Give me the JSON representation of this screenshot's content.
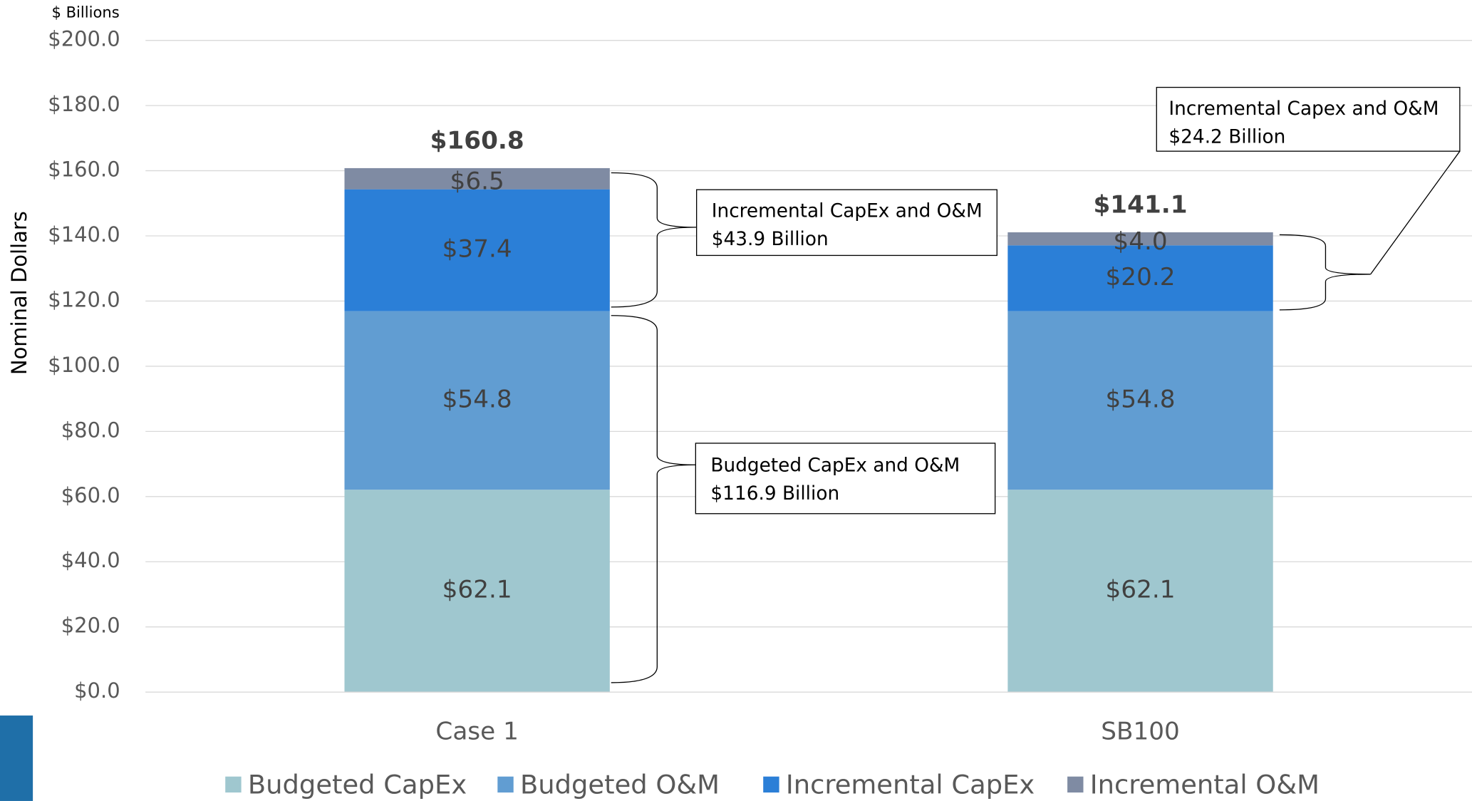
{
  "chart_data": {
    "type": "stacked_bar",
    "unit_label": "$ Billions",
    "y_axis_label": "Nominal Dollars",
    "categories": [
      "Case 1",
      "SB100"
    ],
    "series": [
      {
        "name": "Budgeted CapEx",
        "color": "#9fc7cf",
        "values": [
          62.1,
          62.1
        ],
        "value_labels": [
          "$62.1",
          "$62.1"
        ]
      },
      {
        "name": "Budgeted O&M",
        "color": "#619dd2",
        "values": [
          54.8,
          54.8
        ],
        "value_labels": [
          "$54.8",
          "$54.8"
        ]
      },
      {
        "name": "Incremental CapEx",
        "color": "#2b7fd7",
        "values": [
          37.4,
          20.2
        ],
        "value_labels": [
          "$37.4",
          "$20.2"
        ]
      },
      {
        "name": "Incremental O&M",
        "color": "#7f8ba3",
        "values": [
          6.5,
          4.0
        ],
        "value_labels": [
          "$6.5",
          "$4.0"
        ]
      }
    ],
    "totals": [
      160.8,
      141.1
    ],
    "total_labels": [
      "$160.8",
      "$141.1"
    ],
    "ylim": [
      0,
      200
    ],
    "yticks": [
      {
        "value": 0,
        "label": "$0.0"
      },
      {
        "value": 20,
        "label": "$20.0"
      },
      {
        "value": 40,
        "label": "$40.0"
      },
      {
        "value": 60,
        "label": "$60.0"
      },
      {
        "value": 80,
        "label": "$80.0"
      },
      {
        "value": 100,
        "label": "$100.0"
      },
      {
        "value": 120,
        "label": "$120.0"
      },
      {
        "value": 140,
        "label": "$140.0"
      },
      {
        "value": 160,
        "label": "$160.0"
      },
      {
        "value": 180,
        "label": "$180.0"
      },
      {
        "value": 200,
        "label": "$200.0"
      }
    ],
    "grid": true,
    "legend": "bottom",
    "annotations": [
      [
        "Incremental CapEx and O&M",
        "$43.9 Billion"
      ],
      [
        "Budgeted CapEx and O&M",
        "$116.9 Billion"
      ],
      [
        "Incremental Capex and O&M",
        "$24.2 Billion"
      ]
    ]
  }
}
